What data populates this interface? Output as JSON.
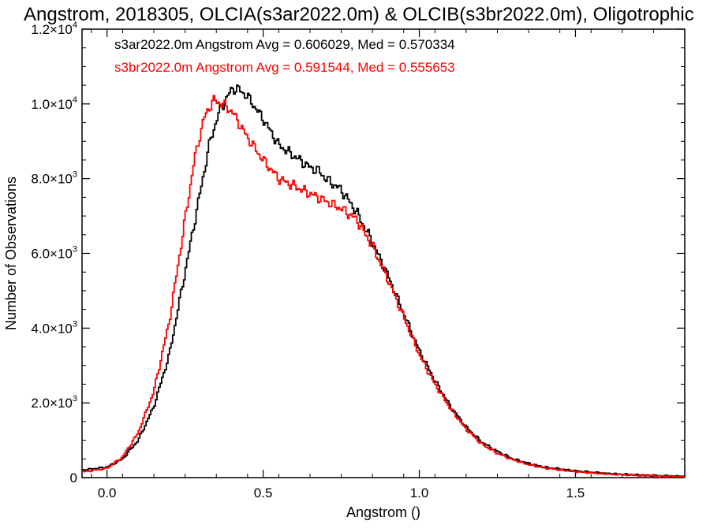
{
  "chart_data": {
    "type": "line",
    "title": "Angstrom, 2018305, OLCIA(s3ar2022.0m) & OLCIB(s3br2022.0m), Oligotrophic",
    "xlabel": "Angstrom ()",
    "ylabel": "Number of Observations",
    "xlim": [
      -0.08,
      1.85
    ],
    "ylim": [
      0,
      12000
    ],
    "x_ticks": [
      {
        "value": 0.0,
        "label": "0.0"
      },
      {
        "value": 0.5,
        "label": "0.5"
      },
      {
        "value": 1.0,
        "label": "1.0"
      },
      {
        "value": 1.5,
        "label": "1.5"
      }
    ],
    "y_ticks": [
      {
        "value": 0,
        "mantissa": "0",
        "exp": ""
      },
      {
        "value": 2000,
        "mantissa": "2.0×10",
        "exp": "3"
      },
      {
        "value": 4000,
        "mantissa": "4.0×10",
        "exp": "3"
      },
      {
        "value": 6000,
        "mantissa": "6.0×10",
        "exp": "3"
      },
      {
        "value": 8000,
        "mantissa": "8.0×10",
        "exp": "3"
      },
      {
        "value": 10000,
        "mantissa": "1.0×10",
        "exp": "4"
      },
      {
        "value": 12000,
        "mantissa": "1.2×10",
        "exp": "4"
      }
    ],
    "grid": false,
    "legend_position": "top-left",
    "series": [
      {
        "name": "s3ar2022.0m Angstrom Avg = 0.606029, Med = 0.570334",
        "color": "#000000",
        "points": [
          [
            -0.08,
            200
          ],
          [
            0.0,
            280
          ],
          [
            0.05,
            500
          ],
          [
            0.1,
            1000
          ],
          [
            0.15,
            1900
          ],
          [
            0.2,
            3300
          ],
          [
            0.25,
            5500
          ],
          [
            0.3,
            7700
          ],
          [
            0.33,
            9000
          ],
          [
            0.36,
            9800
          ],
          [
            0.4,
            10400
          ],
          [
            0.42,
            10400
          ],
          [
            0.45,
            10200
          ],
          [
            0.5,
            9600
          ],
          [
            0.55,
            8900
          ],
          [
            0.6,
            8600
          ],
          [
            0.65,
            8300
          ],
          [
            0.68,
            8200
          ],
          [
            0.7,
            8000
          ],
          [
            0.75,
            7700
          ],
          [
            0.8,
            7100
          ],
          [
            0.85,
            6300
          ],
          [
            0.9,
            5400
          ],
          [
            0.95,
            4400
          ],
          [
            1.0,
            3400
          ],
          [
            1.05,
            2600
          ],
          [
            1.1,
            1900
          ],
          [
            1.15,
            1350
          ],
          [
            1.2,
            950
          ],
          [
            1.25,
            700
          ],
          [
            1.3,
            500
          ],
          [
            1.35,
            380
          ],
          [
            1.4,
            280
          ],
          [
            1.5,
            180
          ],
          [
            1.6,
            110
          ],
          [
            1.7,
            70
          ],
          [
            1.85,
            30
          ]
        ]
      },
      {
        "name": "s3br2022.0m Angstrom Avg = 0.591544, Med = 0.555653",
        "color": "#ff0000",
        "points": [
          [
            -0.08,
            150
          ],
          [
            0.0,
            250
          ],
          [
            0.05,
            550
          ],
          [
            0.1,
            1200
          ],
          [
            0.15,
            2300
          ],
          [
            0.2,
            4200
          ],
          [
            0.25,
            6900
          ],
          [
            0.28,
            8500
          ],
          [
            0.31,
            9600
          ],
          [
            0.34,
            10100
          ],
          [
            0.37,
            10000
          ],
          [
            0.4,
            9800
          ],
          [
            0.45,
            9100
          ],
          [
            0.5,
            8500
          ],
          [
            0.55,
            8000
          ],
          [
            0.6,
            7800
          ],
          [
            0.65,
            7600
          ],
          [
            0.7,
            7400
          ],
          [
            0.75,
            7200
          ],
          [
            0.8,
            6900
          ],
          [
            0.85,
            6200
          ],
          [
            0.9,
            5300
          ],
          [
            0.95,
            4300
          ],
          [
            1.0,
            3300
          ],
          [
            1.05,
            2500
          ],
          [
            1.1,
            1850
          ],
          [
            1.15,
            1300
          ],
          [
            1.2,
            900
          ],
          [
            1.25,
            650
          ],
          [
            1.3,
            480
          ],
          [
            1.35,
            350
          ],
          [
            1.4,
            260
          ],
          [
            1.5,
            160
          ],
          [
            1.6,
            100
          ],
          [
            1.7,
            60
          ],
          [
            1.85,
            25
          ]
        ]
      }
    ]
  }
}
